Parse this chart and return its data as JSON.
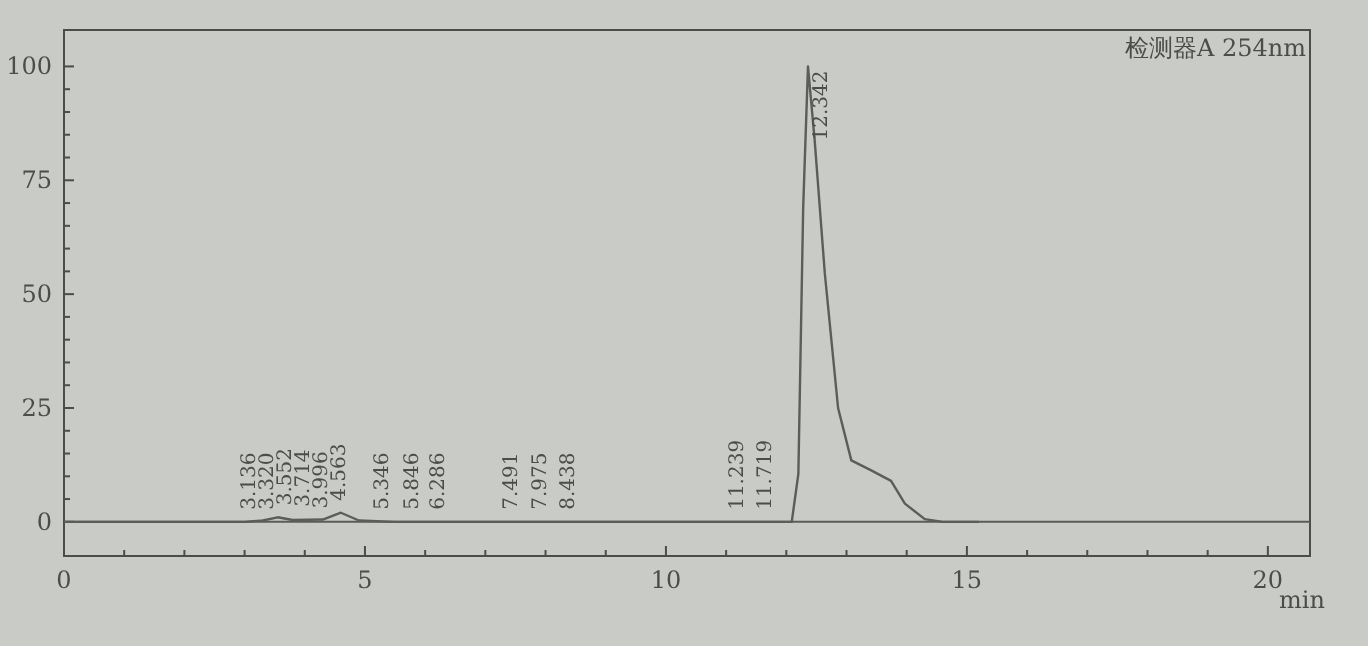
{
  "chart_data": {
    "type": "line",
    "title": "检测器A 254nm",
    "xlabel": "min",
    "x": [
      0,
      3.0,
      3.3,
      3.55,
      3.8,
      4.3,
      4.6,
      4.9,
      5.5,
      7.5,
      8.0,
      11.7,
      12.09,
      12.2,
      12.28,
      12.36,
      12.47,
      12.64,
      12.86,
      13.08,
      13.41,
      13.74,
      13.97,
      14.3,
      14.6,
      15.2
    ],
    "series": [
      {
        "color": "#5a5d5a",
        "values": [
          0,
          0,
          0.3,
          1,
          0.4,
          0.5,
          2,
          0.3,
          0,
          0,
          0,
          0,
          0,
          10.5,
          69,
          100,
          84,
          54.5,
          25,
          13.5,
          11.3,
          9,
          4,
          0.6,
          0,
          0
        ]
      }
    ],
    "xlim": [
      0,
      20.7
    ],
    "ylim": [
      -7.5,
      108
    ],
    "xticks": [
      0,
      5,
      10,
      15,
      20
    ],
    "yticks": [
      0,
      25,
      50,
      75,
      100
    ],
    "grid": false,
    "marker": "none",
    "line_style": "solid",
    "ref_lines": [
      {
        "axis": "y",
        "value": 0,
        "color": "#5a5d5a"
      }
    ],
    "annotations": [
      {
        "text": "3.136",
        "x": 3.136,
        "y": 0
      },
      {
        "text": "3.320",
        "x": 3.32,
        "y": 0
      },
      {
        "text": "3.552",
        "x": 3.552,
        "y": 1
      },
      {
        "text": "3.714",
        "x": 3.714,
        "y": 0.7
      },
      {
        "text": "3.996",
        "x": 3.996,
        "y": 0.3
      },
      {
        "text": "4.563",
        "x": 4.563,
        "y": 2
      },
      {
        "text": "5.346",
        "x": 5.346,
        "y": 0
      },
      {
        "text": "5.846",
        "x": 5.846,
        "y": 0
      },
      {
        "text": "6.286",
        "x": 6.286,
        "y": 0
      },
      {
        "text": "7.491",
        "x": 7.491,
        "y": 0
      },
      {
        "text": "7.975",
        "x": 7.975,
        "y": 0
      },
      {
        "text": "8.438",
        "x": 8.438,
        "y": 0
      },
      {
        "text": "11.239",
        "x": 11.239,
        "y": 0
      },
      {
        "text": "11.719",
        "x": 11.719,
        "y": 0
      },
      {
        "text": "12.342",
        "x": 12.342,
        "y": 100
      }
    ]
  }
}
